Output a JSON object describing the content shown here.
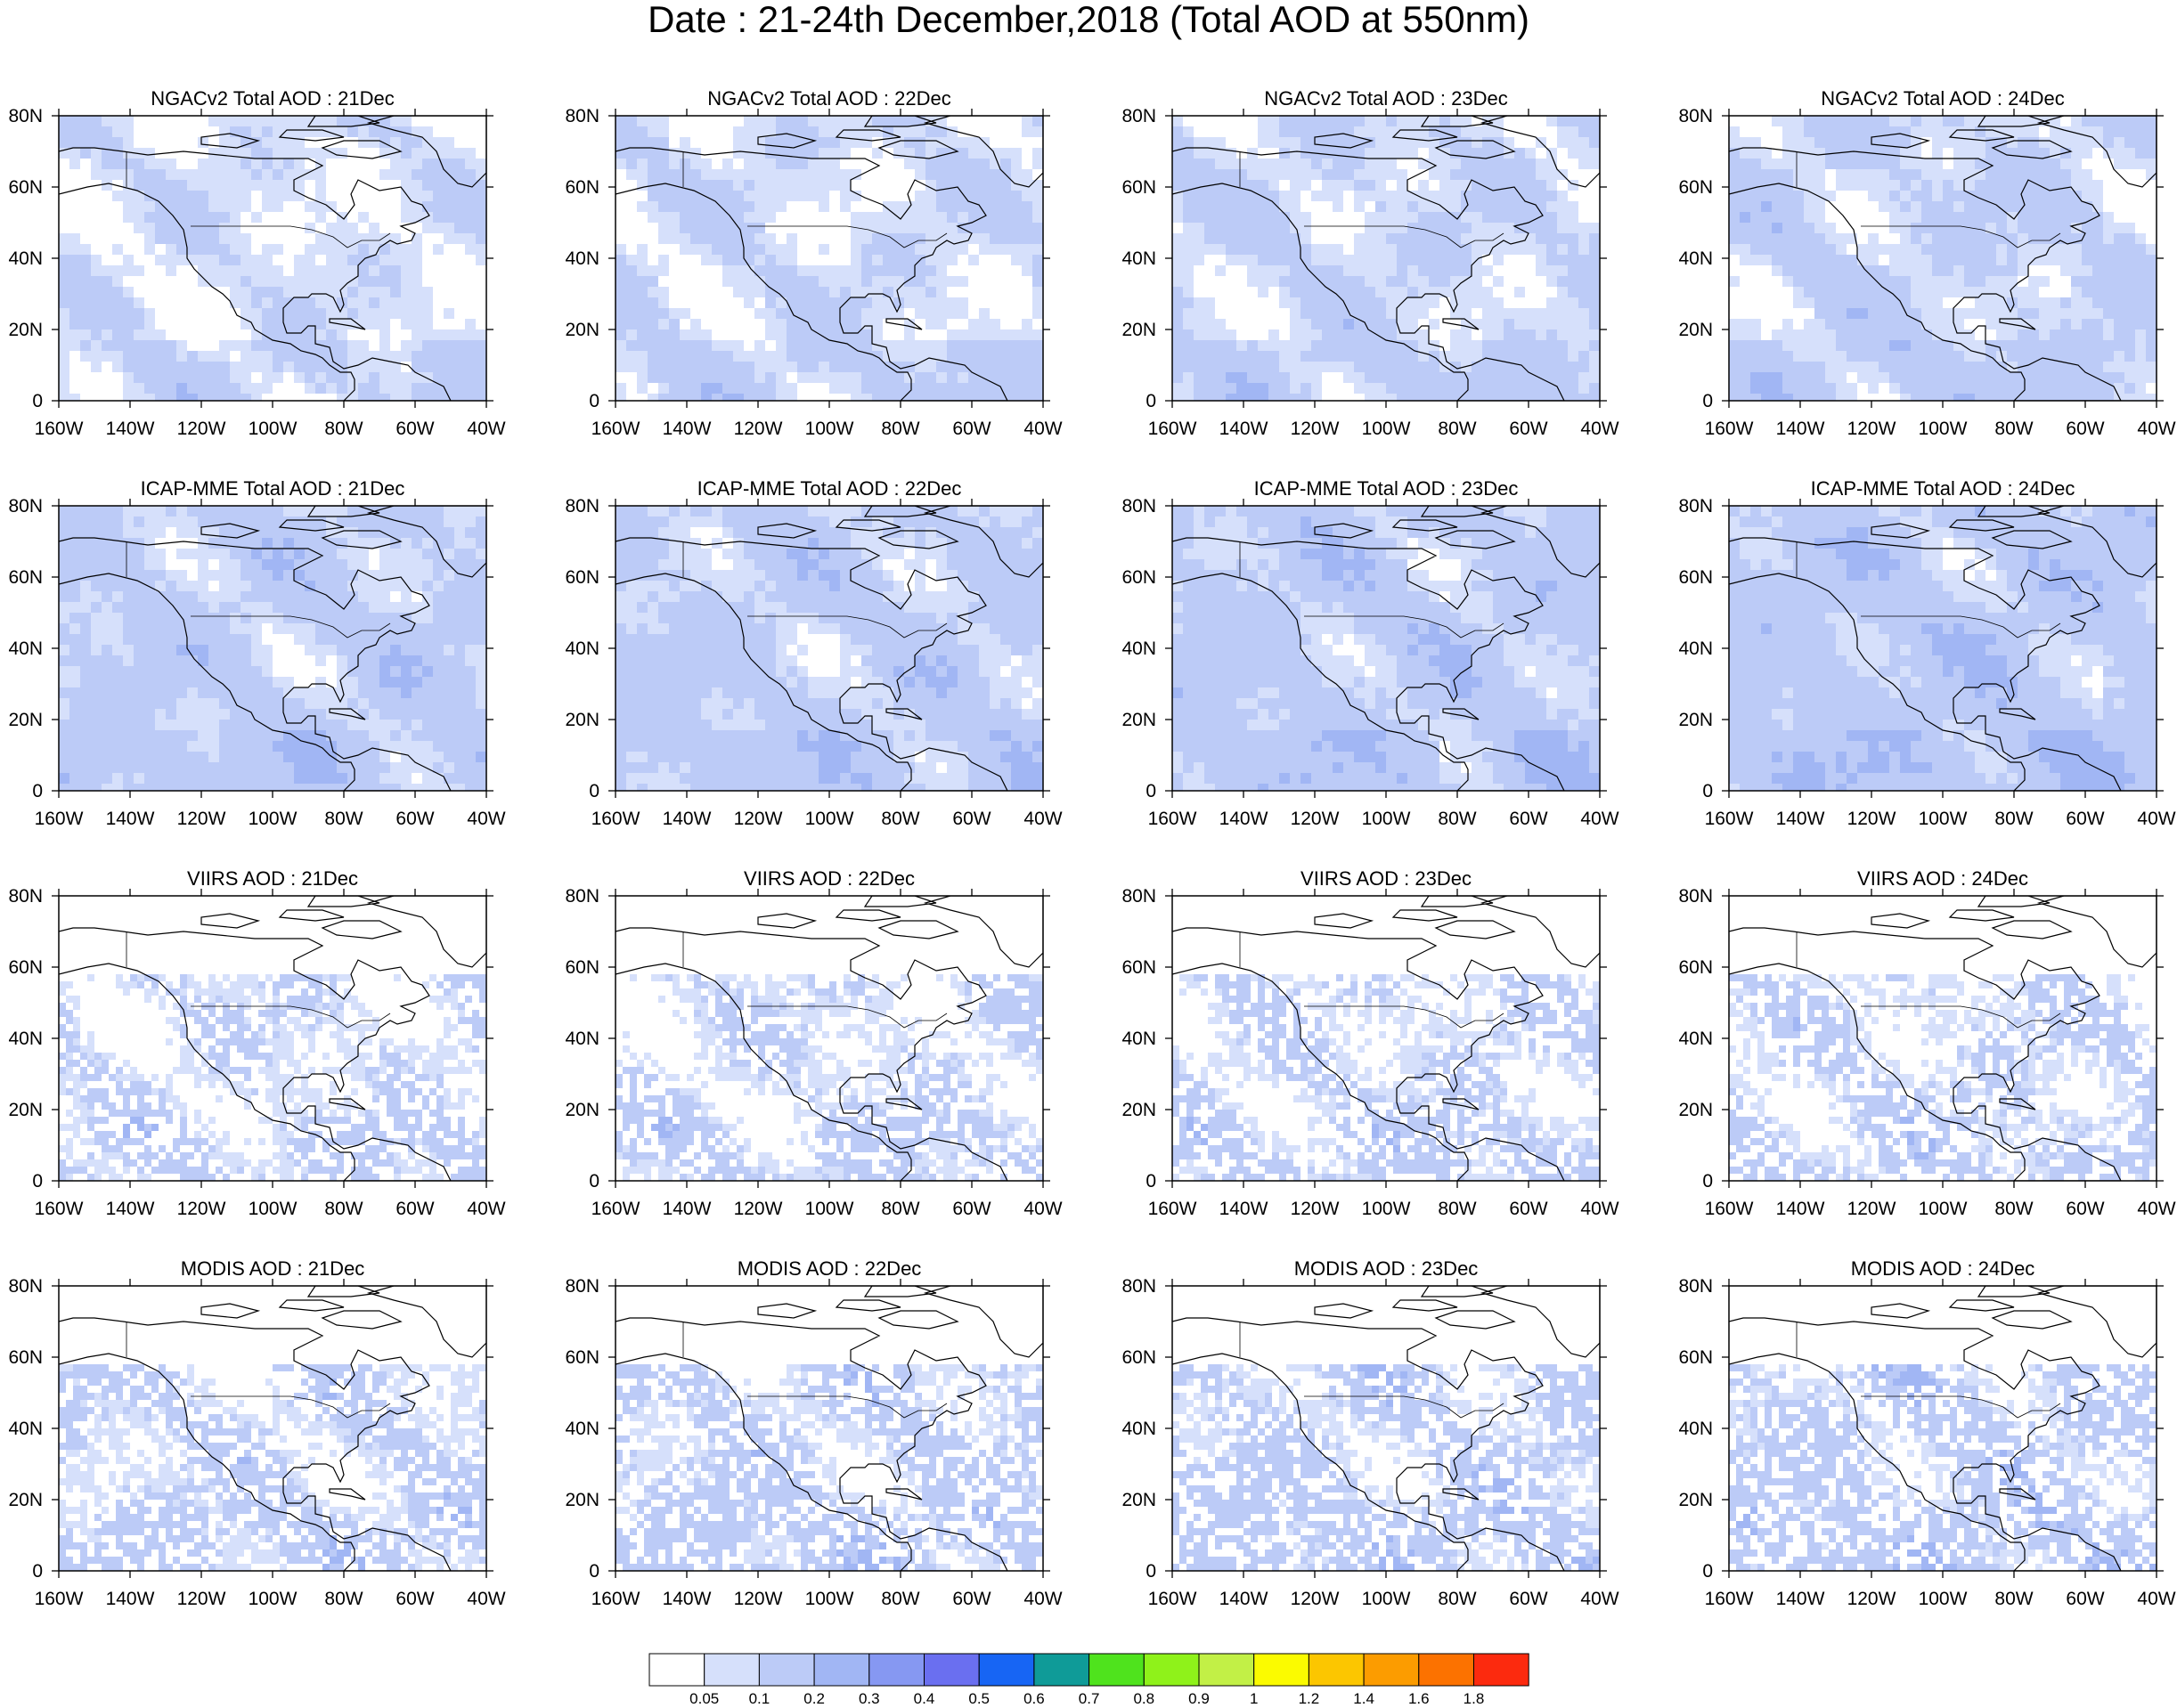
{
  "title": "Date : 21-24th December,2018 (Total AOD at 550nm)",
  "chart_data": {
    "type": "heatmap",
    "rows": [
      "NGACv2 Total AOD",
      "ICAP-MME Total AOD",
      "VIIRS AOD",
      "MODIS AOD"
    ],
    "days": [
      "21Dec",
      "22Dec",
      "23Dec",
      "24Dec"
    ],
    "panels": [
      {
        "title": "NGACv2 Total AOD : 21Dec",
        "product": "NGACv2",
        "day": "21Dec",
        "typical_aod": 0.07
      },
      {
        "title": "NGACv2 Total AOD : 22Dec",
        "product": "NGACv2",
        "day": "22Dec",
        "typical_aod": 0.08
      },
      {
        "title": "NGACv2 Total AOD : 23Dec",
        "product": "NGACv2",
        "day": "23Dec",
        "typical_aod": 0.09
      },
      {
        "title": "NGACv2 Total AOD : 24Dec",
        "product": "NGACv2",
        "day": "24Dec",
        "typical_aod": 0.1
      },
      {
        "title": "ICAP-MME Total AOD : 21Dec",
        "product": "ICAP-MME",
        "day": "21Dec",
        "typical_aod": 0.12
      },
      {
        "title": "ICAP-MME Total AOD : 22Dec",
        "product": "ICAP-MME",
        "day": "22Dec",
        "typical_aod": 0.12
      },
      {
        "title": "ICAP-MME Total AOD : 23Dec",
        "product": "ICAP-MME",
        "day": "23Dec",
        "typical_aod": 0.13
      },
      {
        "title": "ICAP-MME Total AOD : 24Dec",
        "product": "ICAP-MME",
        "day": "24Dec",
        "typical_aod": 0.14
      },
      {
        "title": "VIIRS AOD : 21Dec",
        "product": "VIIRS",
        "day": "21Dec",
        "typical_aod": 0.08
      },
      {
        "title": "VIIRS AOD : 22Dec",
        "product": "VIIRS",
        "day": "22Dec",
        "typical_aod": 0.08
      },
      {
        "title": "VIIRS AOD : 23Dec",
        "product": "VIIRS",
        "day": "23Dec",
        "typical_aod": 0.09
      },
      {
        "title": "VIIRS AOD : 24Dec",
        "product": "VIIRS",
        "day": "24Dec",
        "typical_aod": 0.09
      },
      {
        "title": "MODIS AOD : 21Dec",
        "product": "MODIS",
        "day": "21Dec",
        "typical_aod": 0.1
      },
      {
        "title": "MODIS AOD : 22Dec",
        "product": "MODIS",
        "day": "22Dec",
        "typical_aod": 0.11
      },
      {
        "title": "MODIS AOD : 23Dec",
        "product": "MODIS",
        "day": "23Dec",
        "typical_aod": 0.11
      },
      {
        "title": "MODIS AOD : 24Dec",
        "product": "MODIS",
        "day": "24Dec",
        "typical_aod": 0.12
      }
    ],
    "x_range": [
      -160,
      -40
    ],
    "y_range": [
      0,
      80
    ],
    "x_ticks": [
      "160W",
      "140W",
      "120W",
      "100W",
      "80W",
      "60W",
      "40W"
    ],
    "y_ticks": [
      "0",
      "20N",
      "40N",
      "60N",
      "80N"
    ],
    "colorbar": {
      "labels": [
        "0.05",
        "0.1",
        "0.2",
        "0.3",
        "0.4",
        "0.5",
        "0.6",
        "0.7",
        "0.8",
        "0.9",
        "1",
        "1.2",
        "1.4",
        "1.6",
        "1.8"
      ],
      "colors": [
        "#ffffff",
        "#d6e0fb",
        "#bccbf7",
        "#a1b6f4",
        "#8698f2",
        "#6a6ff0",
        "#1765f4",
        "#0f9b98",
        "#4fe31d",
        "#8ff21a",
        "#c2f046",
        "#fbfb00",
        "#fcc600",
        "#fc9c00",
        "#fc7200",
        "#fc2a0e"
      ]
    },
    "grid": false
  }
}
